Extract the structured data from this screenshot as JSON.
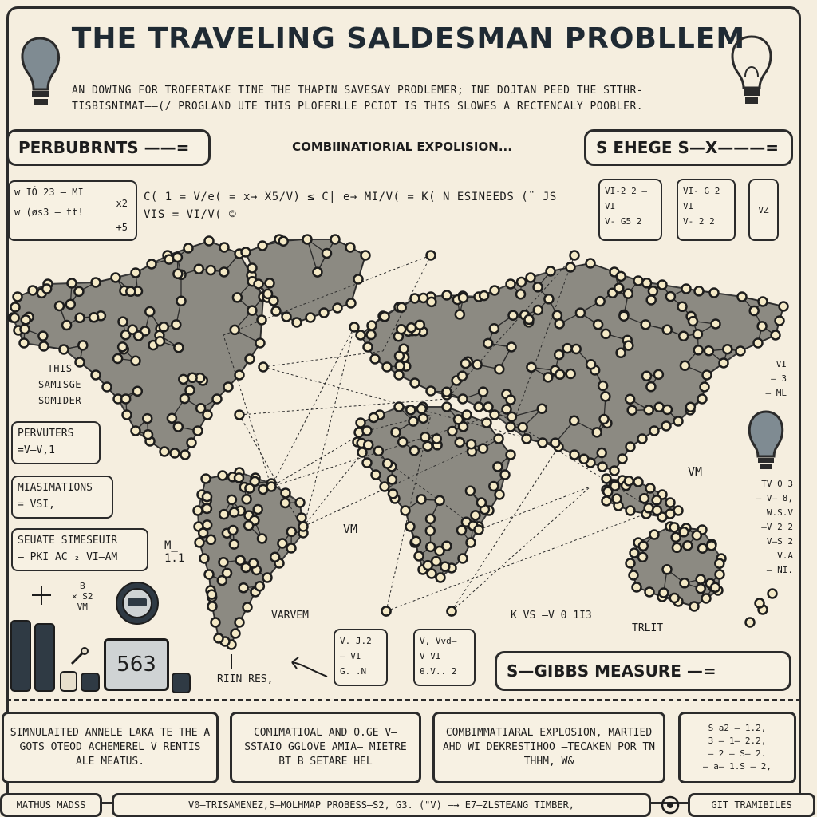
{
  "title": "THE TRAVELING SALDESMAN PROBLLEM",
  "subtitle": {
    "line1": "AN DOWING FOR TROFERTAKE TINE THE THAPIN SAVESAY PRODLEMER; INE DOJTAN PEED THE STTHR-",
    "line2": "TISBISNIMAT——(/ PROGLAND UTE THIS PLOFERLLE PCIOT IS THIS SLOWES A RECTENCALY POOBLER."
  },
  "top_row": {
    "left_box": "PERBUBRNTS ——=",
    "center_text": "COMBIINATIORIAL EXPOLISION...",
    "right_box": "S EHEGE S—X———="
  },
  "formula_row": {
    "left_box": {
      "line1": "w IÓ 23 — MI",
      "line2": "w (øs3 — tt!",
      "side1": "x2",
      "side2": "+5"
    },
    "equation": "C( 1 = V/e( = x→ X5/V) ≤ C| e→ MI/V( = K( N  ESINEEDS (¨ JS VIS = VI/V( ©",
    "right_boxes": [
      {
        "lines": [
          "VI-2 2 —",
          "VI",
          "V- G5 2"
        ]
      },
      {
        "lines": [
          "VI- G 2",
          "VI",
          "V- 2 2"
        ]
      },
      {
        "lines": [
          "VZ"
        ]
      }
    ]
  },
  "left_column": {
    "text_block": [
      "THIS",
      "SAMISGE",
      "SOMIDER"
    ],
    "box1": {
      "title": "PERVUTERS",
      "sub": "=V—V,1"
    },
    "box2": {
      "title": "MIASIMATIONS",
      "sub": "= VSI,"
    },
    "box3": {
      "title": "SEUATE SIMESEUIR",
      "sub": "— PKI AC ₂ VI—AM"
    },
    "annot1": "M_\n1.1",
    "annot2": "B\n× S2\nVM"
  },
  "counter": {
    "value": "563"
  },
  "map_labels": {
    "vm_center": "VM",
    "varvem": "VARVEM",
    "rin_res": "RIIN RES,",
    "vm_right": "VM",
    "vs_label": "K VS —V 0 1I3",
    "trlit": "TRLIT"
  },
  "right_column": {
    "top": [
      "VI",
      "— 3",
      "— ML"
    ],
    "list": [
      "TV 0 3",
      "— V— 8,",
      "W.S.V",
      "—V 2 2",
      "V—S 2",
      "V.A",
      "— NI."
    ]
  },
  "small_boxes": [
    {
      "lines": [
        "V. J.2",
        "— VI",
        "G. .N"
      ]
    },
    {
      "lines": [
        "V, Vvd—",
        "V  VI",
        "θ.V.. 2"
      ]
    }
  ],
  "gibbs": "S—GIBBS MEASURE —=",
  "bottom_boxes": [
    {
      "text": "SIMNULAITED ANNELE LAKA TE THE A GOTS OTEOD ACHEMEREL V RENTIS ALE MEATUS."
    },
    {
      "text": "COMIMATIOAL AND O.GE V— SSTAIO GGLOVE AMIA— MIETRE BT B SETARE HEL"
    },
    {
      "text": "COMBIMMATIARAL EXPLOSION, MARTIED AHD WI DEKRESTIHOO —TECAKEN POR TN THHM, W&"
    },
    {
      "lines": [
        "S  a2 — 1.2,",
        "3  — 1— 2.2,",
        "— 2 — S— 2.",
        "— a— 1.S — 2,"
      ]
    }
  ],
  "footer": {
    "left": "MATHUS MADSS",
    "center": "V0—TRISAMENEZ,S—MOLHMAP PROBESS—S2, G3. (\"V) —→ E7—ZLSTEANG TIMBER,",
    "right": "GIT TRAMIBILES"
  },
  "colors": {
    "background": "#f5eedf",
    "land": "#8c8a82",
    "ink": "#1d1d1d",
    "node_fill": "#f4e9c6"
  },
  "icons": [
    "lightbulb-icon",
    "lightbulb-outline-icon",
    "lightbulb-small-icon",
    "bar-chart-icon",
    "dial-icon"
  ]
}
